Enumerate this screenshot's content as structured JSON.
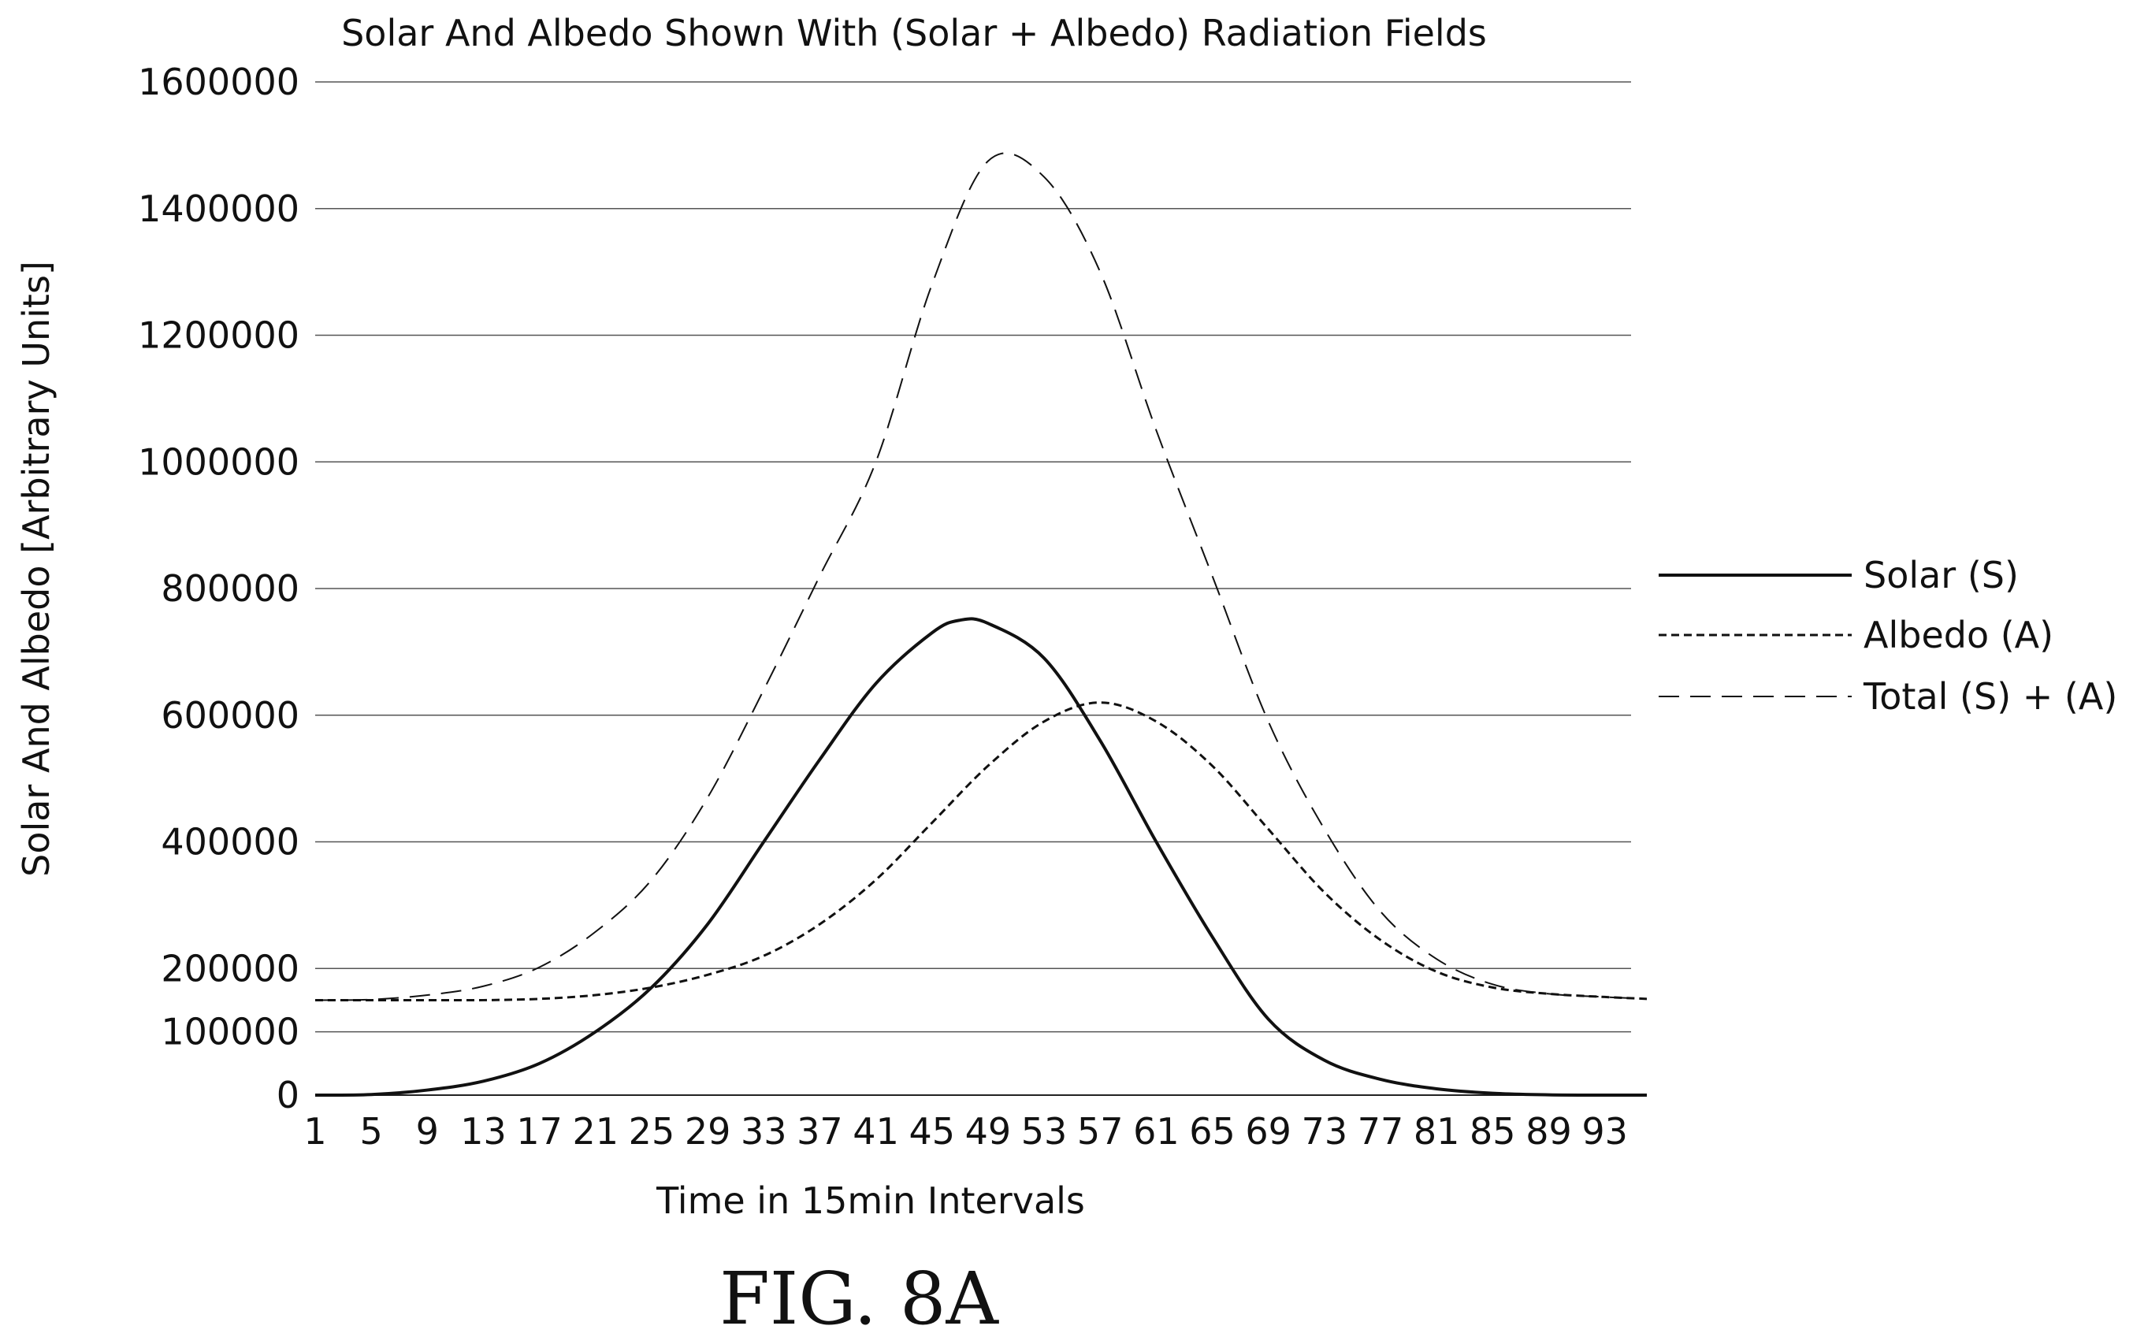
{
  "chart_data": {
    "type": "line",
    "title": "Solar And Albedo Shown With (Solar + Albedo) Radiation Fields",
    "xlabel": "Time in 15min Intervals",
    "ylabel": "Solar And Albedo [Arbitrary Units]",
    "xlim": [
      1,
      96
    ],
    "ylim": [
      0,
      1600000
    ],
    "x_ticks": [
      1,
      5,
      9,
      13,
      17,
      21,
      25,
      29,
      33,
      37,
      41,
      45,
      49,
      53,
      57,
      61,
      65,
      69,
      73,
      77,
      81,
      85,
      89,
      93
    ],
    "y_ticks": [
      0,
      100000,
      200000,
      400000,
      600000,
      800000,
      1000000,
      1200000,
      1400000,
      1600000
    ],
    "grid": true,
    "legend_position": "right",
    "series": [
      {
        "name": "Solar (S)",
        "style": "solid",
        "color": "#111111",
        "x": [
          1,
          5,
          9,
          13,
          17,
          21,
          25,
          29,
          33,
          37,
          41,
          45,
          47,
          49,
          53,
          57,
          61,
          65,
          69,
          73,
          77,
          81,
          85,
          89,
          93,
          96
        ],
        "values": [
          0,
          1000,
          8000,
          22000,
          50000,
          100000,
          170000,
          270000,
          400000,
          530000,
          650000,
          730000,
          750000,
          745000,
          690000,
          560000,
          400000,
          250000,
          120000,
          55000,
          25000,
          10000,
          3000,
          500,
          0,
          0
        ]
      },
      {
        "name": "Albedo (A)",
        "style": "dashed",
        "color": "#111111",
        "x": [
          1,
          5,
          9,
          13,
          17,
          21,
          25,
          29,
          33,
          37,
          41,
          45,
          49,
          53,
          57,
          61,
          65,
          69,
          73,
          77,
          81,
          85,
          89,
          93,
          96
        ],
        "values": [
          150000,
          150000,
          150000,
          150000,
          152000,
          158000,
          170000,
          190000,
          220000,
          270000,
          340000,
          430000,
          520000,
          590000,
          620000,
          590000,
          520000,
          420000,
          320000,
          245000,
          195000,
          170000,
          160000,
          155000,
          152000
        ]
      },
      {
        "name": "Total (S) + (A)",
        "style": "long-dashed",
        "color": "#111111",
        "x": [
          1,
          5,
          9,
          13,
          17,
          21,
          25,
          29,
          33,
          37,
          41,
          45,
          49,
          53,
          57,
          61,
          65,
          69,
          73,
          77,
          81,
          85,
          89,
          93,
          96
        ],
        "values": [
          150000,
          151000,
          158000,
          172000,
          202000,
          258000,
          340000,
          470000,
          640000,
          820000,
          1000000,
          1280000,
          1475000,
          1450000,
          1300000,
          1050000,
          820000,
          590000,
          420000,
          290000,
          215000,
          175000,
          160000,
          155000,
          152000
        ]
      }
    ]
  },
  "figure_caption": "FIG. 8A"
}
